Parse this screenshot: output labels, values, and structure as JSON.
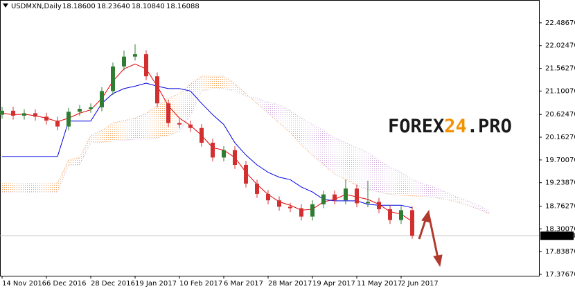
{
  "chart_data": {
    "type": "candlestick",
    "title": "USDMXN,Daily",
    "header_values": [
      "18.18600",
      "18.23640",
      "18.10840",
      "18.16088"
    ],
    "watermark": [
      "FOREX",
      "24",
      ".PRO"
    ],
    "watermark_colors": [
      "#1a1a1a",
      "#f39200",
      "#1a1a1a"
    ],
    "up_color": "#2e7d32",
    "down_color": "#d32f2f",
    "xlim": [
      -0.75,
      193.75
    ],
    "ylim": [
      17.348,
      22.95
    ],
    "xticks": [
      {
        "value": 0,
        "label": "14 Nov 2016"
      },
      {
        "value": 16,
        "label": "6 Dec 2016"
      },
      {
        "value": 32,
        "label": "28 Dec 2016"
      },
      {
        "value": 48,
        "label": "19 Jan 2017"
      },
      {
        "value": 64,
        "label": "10 Feb 2017"
      },
      {
        "value": 80,
        "label": "6 Mar 2017"
      },
      {
        "value": 96,
        "label": "28 Mar 2017"
      },
      {
        "value": 112,
        "label": "19 Apr 2017"
      },
      {
        "value": 128,
        "label": "11 May 2017"
      },
      {
        "value": 144,
        "label": "2 Jun 2017"
      }
    ],
    "yticks": [
      {
        "value": 22.4867,
        "label": "22.48670"
      },
      {
        "value": 22.0247,
        "label": "22.02470"
      },
      {
        "value": 21.5627,
        "label": "21.56270"
      },
      {
        "value": 21.1007,
        "label": "21.10070"
      },
      {
        "value": 20.6247,
        "label": "20.62470"
      },
      {
        "value": 20.1627,
        "label": "20.16270"
      },
      {
        "value": 19.7007,
        "label": "19.70070"
      },
      {
        "value": 19.2387,
        "label": "19.23870"
      },
      {
        "value": 18.7627,
        "label": "18.76270"
      },
      {
        "value": 18.3007,
        "label": "18.30070"
      },
      {
        "value": 17.8387,
        "label": "17.83870"
      },
      {
        "value": 17.3767,
        "label": "17.37670"
      }
    ],
    "last_price": {
      "value": 18.16088,
      "label": "18.16088"
    },
    "x": [
      0,
      4,
      8,
      12,
      16,
      20,
      24,
      28,
      32,
      36,
      40,
      44,
      48,
      52,
      56,
      60,
      64,
      68,
      72,
      76,
      80,
      84,
      88,
      92,
      96,
      100,
      104,
      108,
      112,
      116,
      120,
      124,
      128,
      132,
      136,
      140,
      144,
      148
    ],
    "open": [
      20.62,
      20.7,
      20.6,
      20.65,
      20.58,
      20.5,
      20.38,
      20.68,
      20.74,
      20.77,
      21.1,
      21.6,
      21.8,
      21.85,
      21.4,
      20.85,
      20.45,
      20.42,
      20.35,
      20.05,
      19.75,
      19.9,
      19.6,
      19.22,
      19.01,
      18.88,
      18.75,
      18.72,
      18.55,
      18.8,
      19.0,
      18.88,
      19.12,
      18.82,
      18.85,
      18.7,
      18.48,
      18.68
    ],
    "high": [
      20.78,
      20.78,
      20.73,
      20.73,
      20.66,
      20.58,
      20.76,
      20.82,
      20.85,
      21.18,
      21.68,
      21.92,
      22.05,
      21.93,
      21.48,
      20.93,
      20.53,
      20.5,
      20.43,
      20.13,
      19.98,
      19.98,
      19.68,
      19.3,
      19.09,
      18.96,
      18.83,
      18.8,
      18.88,
      19.08,
      19.08,
      19.3,
      19.2,
      19.28,
      18.93,
      18.78,
      18.76,
      18.76
    ],
    "low": [
      20.54,
      20.52,
      20.52,
      20.5,
      20.42,
      20.3,
      20.3,
      20.6,
      20.66,
      20.69,
      21.02,
      21.52,
      21.72,
      21.32,
      20.77,
      20.37,
      20.34,
      20.27,
      19.97,
      19.67,
      19.67,
      19.52,
      19.14,
      18.93,
      18.8,
      18.67,
      18.64,
      18.47,
      18.47,
      18.72,
      18.8,
      18.8,
      18.74,
      18.74,
      18.62,
      18.4,
      18.4,
      18.1
    ],
    "close": [
      20.7,
      20.6,
      20.65,
      20.58,
      20.5,
      20.38,
      20.68,
      20.74,
      20.77,
      21.1,
      21.6,
      21.8,
      21.85,
      21.4,
      20.85,
      20.45,
      20.42,
      20.35,
      20.05,
      19.75,
      19.9,
      19.6,
      19.22,
      19.01,
      18.88,
      18.75,
      18.72,
      18.55,
      18.8,
      19.0,
      18.88,
      19.12,
      18.82,
      18.85,
      18.7,
      18.48,
      18.68,
      18.16
    ],
    "series": [
      {
        "color": "#e00000",
        "values": [
          20.65,
          20.62,
          20.63,
          20.6,
          20.55,
          20.48,
          20.55,
          20.65,
          20.72,
          20.95,
          21.3,
          21.55,
          21.65,
          21.55,
          21.2,
          20.8,
          20.55,
          20.4,
          20.2,
          19.95,
          19.9,
          19.75,
          19.45,
          19.2,
          19.0,
          18.85,
          18.78,
          18.68,
          18.7,
          18.85,
          18.9,
          19.0,
          18.95,
          18.9,
          18.8,
          18.65,
          18.6,
          18.45
        ]
      },
      {
        "color": "#0000e0",
        "values": [
          19.77,
          19.77,
          19.77,
          19.77,
          19.77,
          19.77,
          20.49,
          20.49,
          20.49,
          20.85,
          21.05,
          21.15,
          21.2,
          21.26,
          21.2,
          21.15,
          21.15,
          21.1,
          20.85,
          20.62,
          20.42,
          20.05,
          19.8,
          19.6,
          19.45,
          19.35,
          19.3,
          19.15,
          19.05,
          18.9,
          18.87,
          18.87,
          18.87,
          18.8,
          18.78,
          18.78,
          18.78,
          18.73
        ]
      }
    ],
    "cloud": {
      "x": [
        0,
        4,
        8,
        12,
        16,
        20,
        24,
        28,
        32,
        36,
        40,
        44,
        48,
        52,
        56,
        60,
        64,
        68,
        72,
        76,
        80,
        84,
        88,
        92,
        96,
        100,
        104,
        108,
        112,
        116,
        120,
        124,
        128,
        132,
        136,
        140,
        144,
        148,
        152,
        156,
        160,
        164,
        168,
        172,
        176
      ],
      "a_color": "#f4a460",
      "b_color": "#d7b8e0",
      "a": [
        19.22,
        19.22,
        19.22,
        19.22,
        19.22,
        19.22,
        19.7,
        19.75,
        20.2,
        20.3,
        20.45,
        20.5,
        20.55,
        20.65,
        20.8,
        20.95,
        21.05,
        21.25,
        21.4,
        21.4,
        21.4,
        21.25,
        21.05,
        20.85,
        20.65,
        20.45,
        20.25,
        20.0,
        19.8,
        19.6,
        19.42,
        19.3,
        19.18,
        19.1,
        19.05,
        19.0,
        18.98,
        18.97,
        18.96,
        18.94,
        18.9,
        18.85,
        18.78,
        18.7,
        18.6
      ],
      "b": [
        19.05,
        19.05,
        19.05,
        19.05,
        19.05,
        19.05,
        19.6,
        19.6,
        20.05,
        20.06,
        20.08,
        20.1,
        20.12,
        20.12,
        20.15,
        20.2,
        20.28,
        20.6,
        21.1,
        21.15,
        21.15,
        21.1,
        21.0,
        20.95,
        20.88,
        20.82,
        20.7,
        20.55,
        20.42,
        20.3,
        20.15,
        20.05,
        19.95,
        19.85,
        19.7,
        19.55,
        19.45,
        19.3,
        19.22,
        19.15,
        19.05,
        18.95,
        18.87,
        18.78,
        18.66
      ]
    }
  }
}
